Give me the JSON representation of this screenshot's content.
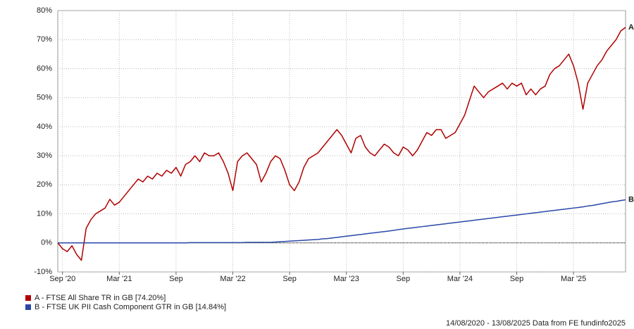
{
  "chart_data": {
    "type": "line",
    "categories": [
      null,
      "Sep '20",
      null,
      null,
      null,
      null,
      null,
      null,
      null,
      null,
      null,
      null,
      null,
      "Mar '21",
      null,
      null,
      null,
      null,
      null,
      null,
      null,
      null,
      null,
      null,
      null,
      "Sep",
      null,
      null,
      null,
      null,
      null,
      null,
      null,
      null,
      null,
      null,
      null,
      "Mar '22",
      null,
      null,
      null,
      null,
      null,
      null,
      null,
      null,
      null,
      null,
      null,
      "Sep",
      null,
      null,
      null,
      null,
      null,
      null,
      null,
      null,
      null,
      null,
      null,
      "Mar '23",
      null,
      null,
      null,
      null,
      null,
      null,
      null,
      null,
      null,
      null,
      null,
      "Sep",
      null,
      null,
      null,
      null,
      null,
      null,
      null,
      null,
      null,
      null,
      null,
      "Mar '24",
      null,
      null,
      null,
      null,
      null,
      null,
      null,
      null,
      null,
      null,
      null,
      "Sep",
      null,
      null,
      null,
      null,
      null,
      null,
      null,
      null,
      null,
      null,
      null,
      "Mar '25",
      null,
      null,
      null,
      null,
      null,
      null,
      null,
      null,
      null,
      null,
      null
    ],
    "series": [
      {
        "name": "A - FTSE All Share TR in GB [74.20%]",
        "end_label": "A",
        "color": "#b00000",
        "values": [
          0,
          -2,
          -3,
          -1,
          -4,
          -6,
          5,
          8,
          10,
          11,
          12,
          15,
          13,
          14,
          16,
          18,
          20,
          22,
          21,
          23,
          22,
          24,
          23,
          25,
          24,
          26,
          23,
          27,
          28,
          30,
          28,
          31,
          30,
          30,
          31,
          28,
          24,
          18,
          28,
          30,
          31,
          29,
          27,
          21,
          24,
          28,
          30,
          29,
          25,
          20,
          18,
          21,
          26,
          29,
          30,
          31,
          33,
          35,
          37,
          39,
          37,
          34,
          31,
          36,
          37,
          33,
          31,
          30,
          32,
          34,
          33,
          31,
          30,
          33,
          32,
          30,
          32,
          35,
          38,
          37,
          39,
          39,
          36,
          37,
          38,
          41,
          44,
          49,
          54,
          52,
          50,
          52,
          53,
          54,
          55,
          53,
          55,
          54,
          55,
          51,
          53,
          51,
          53,
          54,
          58,
          60,
          61,
          63,
          65,
          61,
          55,
          46,
          55,
          58,
          61,
          63,
          66,
          68,
          70,
          73,
          74.2
        ]
      },
      {
        "name": "B - FTSE UK PII Cash Component GTR in GB [14.84%]",
        "end_label": "B",
        "color": "#2a48a8",
        "values": [
          0,
          0,
          0,
          0,
          0,
          0,
          0,
          0,
          0,
          0,
          0,
          0,
          0,
          0,
          0,
          0,
          0,
          0,
          0,
          0,
          0,
          0,
          0,
          0,
          0,
          0,
          0,
          0,
          0.1,
          0.1,
          0.1,
          0.1,
          0.1,
          0.1,
          0.1,
          0.1,
          0.1,
          0.1,
          0.1,
          0.1,
          0.2,
          0.2,
          0.2,
          0.2,
          0.2,
          0.2,
          0.3,
          0.4,
          0.5,
          0.6,
          0.7,
          0.8,
          0.9,
          1.0,
          1.1,
          1.2,
          1.4,
          1.5,
          1.7,
          1.9,
          2.1,
          2.3,
          2.5,
          2.7,
          2.9,
          3.1,
          3.3,
          3.5,
          3.7,
          3.9,
          4.1,
          4.3,
          4.6,
          4.8,
          5.0,
          5.2,
          5.4,
          5.6,
          5.8,
          6.0,
          6.2,
          6.4,
          6.6,
          6.8,
          7.0,
          7.2,
          7.4,
          7.6,
          7.8,
          8.0,
          8.2,
          8.4,
          8.6,
          8.8,
          9.0,
          9.2,
          9.4,
          9.6,
          9.8,
          10.0,
          10.2,
          10.4,
          10.6,
          10.8,
          11.0,
          11.2,
          11.4,
          11.6,
          11.8,
          12.0,
          12.2,
          12.4,
          12.7,
          12.9,
          13.2,
          13.5,
          13.8,
          14.1,
          14.3,
          14.6,
          14.84
        ]
      }
    ],
    "ylim": [
      -10,
      80
    ],
    "yticks": [
      {
        "value": -10,
        "label": "-10%"
      },
      {
        "value": 0,
        "label": "0%"
      },
      {
        "value": 10,
        "label": "10%"
      },
      {
        "value": 20,
        "label": "20%"
      },
      {
        "value": 30,
        "label": "30%"
      },
      {
        "value": 40,
        "label": "40%"
      },
      {
        "value": 50,
        "label": "50%"
      },
      {
        "value": 60,
        "label": "60%"
      },
      {
        "value": 70,
        "label": "70%"
      },
      {
        "value": 80,
        "label": "80%"
      }
    ],
    "grid": true,
    "footer": "14/08/2020 - 13/08/2025 Data from FE fundinfo2025"
  }
}
